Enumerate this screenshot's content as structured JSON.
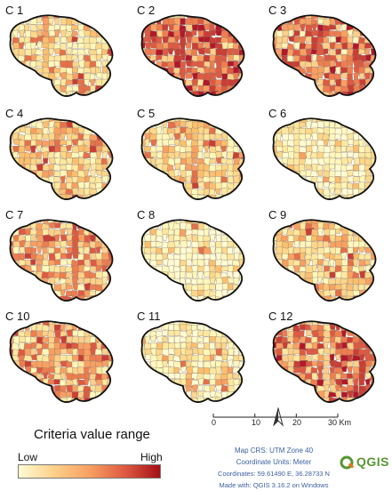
{
  "panels": [
    {
      "label": "C 1",
      "palette": [
        "#fff7bc",
        "#fee8a0",
        "#fdd78a",
        "#fcbf6e",
        "#f8a062",
        "#e6704a",
        "#c93e36"
      ],
      "weights": [
        30,
        24,
        16,
        12,
        9,
        6,
        3
      ]
    },
    {
      "label": "C 2",
      "palette": [
        "#fee8a0",
        "#fdd08a",
        "#f8a062",
        "#ee7d4f",
        "#de5a42",
        "#c93e36",
        "#b2182b"
      ],
      "weights": [
        4,
        8,
        14,
        20,
        22,
        18,
        14
      ]
    },
    {
      "label": "C 3",
      "palette": [
        "#fff7bc",
        "#fdd08a",
        "#f8a062",
        "#ee7d4f",
        "#de5a42",
        "#c93e36",
        "#b2182b"
      ],
      "weights": [
        8,
        14,
        18,
        20,
        18,
        14,
        8
      ]
    },
    {
      "label": "C 4",
      "palette": [
        "#fff7bc",
        "#fee8a0",
        "#fdd78a",
        "#fcbf6e",
        "#f8a062",
        "#e6704a",
        "#c93e36"
      ],
      "weights": [
        14,
        20,
        22,
        18,
        14,
        8,
        4
      ]
    },
    {
      "label": "C 5",
      "palette": [
        "#fff7bc",
        "#fee8a0",
        "#fdd78a",
        "#fcbf6e",
        "#f8a062",
        "#e6704a",
        "#c93e36"
      ],
      "weights": [
        16,
        22,
        22,
        18,
        12,
        7,
        3
      ]
    },
    {
      "label": "C 6",
      "palette": [
        "#fffbd4",
        "#fff7bc",
        "#fee8a0",
        "#fdd78a",
        "#fcbf6e",
        "#f8a062",
        "#e6704a"
      ],
      "weights": [
        30,
        28,
        20,
        12,
        6,
        3,
        1
      ]
    },
    {
      "label": "C 7",
      "palette": [
        "#fff7bc",
        "#fee8a0",
        "#fdd08a",
        "#f8a062",
        "#ee7d4f",
        "#de5a42",
        "#c93e36"
      ],
      "weights": [
        10,
        16,
        20,
        20,
        16,
        12,
        6
      ]
    },
    {
      "label": "C 8",
      "palette": [
        "#fffbd4",
        "#fff7bc",
        "#fee8a0",
        "#fdd78a",
        "#fcbf6e",
        "#f8a062",
        "#e6704a"
      ],
      "weights": [
        40,
        28,
        16,
        8,
        5,
        2,
        1
      ]
    },
    {
      "label": "C 9",
      "palette": [
        "#fff7bc",
        "#fee8a0",
        "#fdd78a",
        "#fcbf6e",
        "#f8a062",
        "#e6704a",
        "#c93e36"
      ],
      "weights": [
        14,
        20,
        20,
        18,
        14,
        9,
        5
      ]
    },
    {
      "label": "C 10",
      "palette": [
        "#fff7bc",
        "#fee8a0",
        "#fdd08a",
        "#f8a062",
        "#ee7d4f",
        "#de5a42",
        "#c93e36"
      ],
      "weights": [
        10,
        16,
        20,
        20,
        16,
        12,
        6
      ]
    },
    {
      "label": "C 11",
      "palette": [
        "#fffbd4",
        "#fff7bc",
        "#fee8a0",
        "#fdd78a",
        "#fcbf6e",
        "#f8a062",
        "#e6704a"
      ],
      "weights": [
        30,
        26,
        20,
        12,
        7,
        4,
        1
      ]
    },
    {
      "label": "C 12",
      "palette": [
        "#fee8a0",
        "#fdd08a",
        "#f8a062",
        "#ee7d4f",
        "#de5a42",
        "#c93e36",
        "#b2182b"
      ],
      "weights": [
        8,
        12,
        16,
        20,
        20,
        14,
        10
      ]
    }
  ],
  "legend": {
    "title": "Criteria value range",
    "low_label": "Low",
    "high_label": "High",
    "gradient_colors": [
      "#fffbd4",
      "#fdd08a",
      "#f8a062",
      "#de5a42",
      "#a50f15"
    ]
  },
  "scalebar": {
    "ticks": [
      "0",
      "10",
      "20",
      "30 Km"
    ]
  },
  "north_arrow": {
    "icon": "north-arrow-icon"
  },
  "metadata": {
    "map_crs": "Map CRS: UTM Zone 40",
    "coord_units": "Coordinate Units: Meter",
    "coordinates": "Coordinates: 59.61490 E, 36.28733 N",
    "made_with": "Made with: QGIS 3.16.2 on Windows"
  },
  "logo": {
    "text": "QGIS",
    "color": "#589632"
  },
  "colors": {
    "boundary": "#111111",
    "text_blue": "#3b5fa0"
  }
}
